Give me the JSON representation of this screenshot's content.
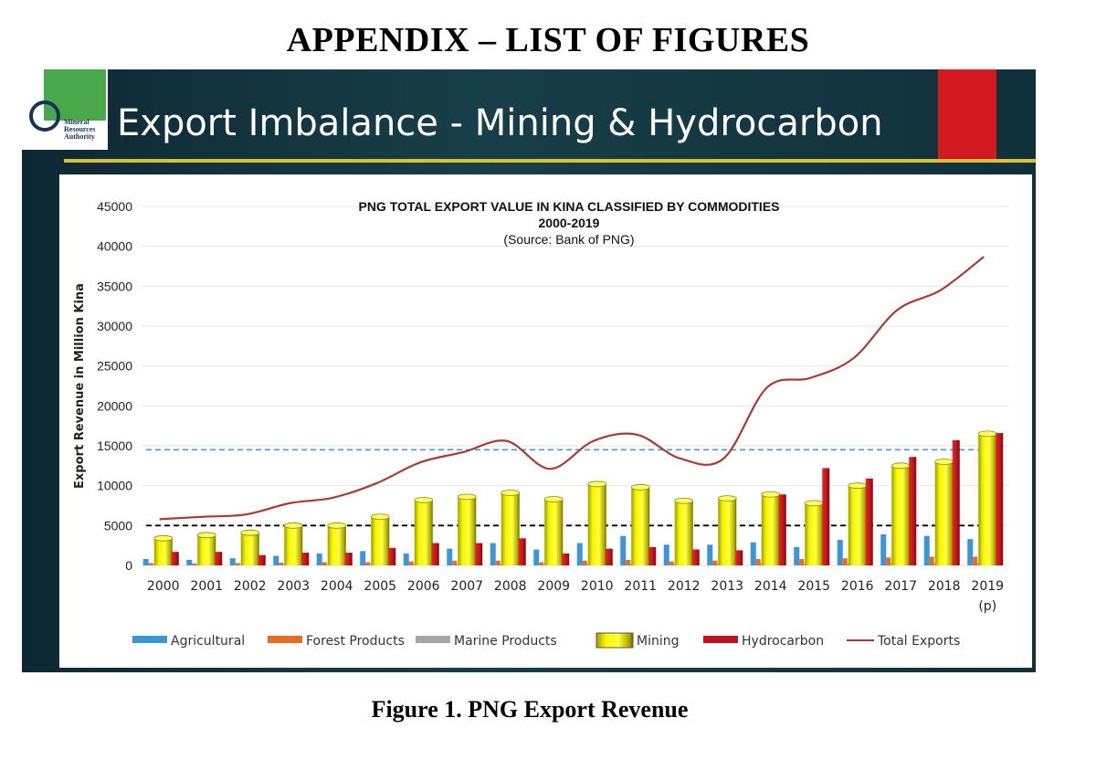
{
  "page": {
    "heading": "APPENDIX – LIST OF FIGURES",
    "caption": "Figure 1. PNG Export Revenue"
  },
  "slide": {
    "title": "Export Imbalance - Mining & Hydrocarbon",
    "logo_text": [
      "Mineral",
      "Resources",
      "Authority"
    ],
    "colors": {
      "background": "#173f49",
      "accent_red": "#d2191f",
      "rule": "#d8c13a",
      "logo_green": "#4aa84b"
    }
  },
  "chart_data": {
    "type": "bar",
    "title": [
      "PNG TOTAL EXPORT VALUE IN KINA CLASSIFIED BY COMMODITIES",
      "2000-2019",
      "(Source: Bank of PNG)"
    ],
    "xlabel": "",
    "ylabel": "Export Revenue in  Million Kina",
    "ylim": [
      0,
      45000
    ],
    "yticks": [
      0,
      5000,
      10000,
      15000,
      20000,
      25000,
      30000,
      35000,
      40000,
      45000
    ],
    "grid": "horizontal",
    "legend_position": "bottom",
    "categories": [
      "2000",
      "2001",
      "2002",
      "2003",
      "2004",
      "2005",
      "2006",
      "2007",
      "2008",
      "2009",
      "2010",
      "2011",
      "2012",
      "2013",
      "2014",
      "2015",
      "2016",
      "2017",
      "2018",
      "2019"
    ],
    "category_sublabels": {
      "2019": "(p)"
    },
    "series": [
      {
        "name": "Agricultural",
        "kind": "bar",
        "color": "#3a96d8",
        "values": [
          800,
          700,
          900,
          1200,
          1500,
          1800,
          1500,
          2100,
          2800,
          2000,
          2800,
          3700,
          2600,
          2600,
          2900,
          2300,
          3200,
          3900,
          3700,
          3300
        ]
      },
      {
        "name": "Forest Products",
        "kind": "bar",
        "color": "#ea6d1f",
        "values": [
          300,
          250,
          300,
          350,
          400,
          400,
          500,
          600,
          600,
          400,
          600,
          700,
          500,
          600,
          800,
          800,
          900,
          1000,
          1100,
          1100
        ]
      },
      {
        "name": "Marine Products",
        "kind": "bar",
        "color": "#a6a6a6",
        "values": [
          100,
          100,
          100,
          150,
          150,
          150,
          150,
          150,
          200,
          150,
          200,
          200,
          200,
          200,
          250,
          250,
          250,
          300,
          300,
          300
        ]
      },
      {
        "name": "Mining",
        "kind": "cylinder",
        "color": "#f2f200",
        "values": [
          3400,
          3800,
          4100,
          5000,
          5000,
          6100,
          8200,
          8600,
          9100,
          8300,
          10200,
          9800,
          8100,
          8400,
          8900,
          7800,
          10000,
          12500,
          13000,
          16500
        ]
      },
      {
        "name": "Hydrocarbon",
        "kind": "bar",
        "color": "#c3121c",
        "values": [
          1700,
          1700,
          1300,
          1600,
          1600,
          2200,
          2800,
          2800,
          3400,
          1500,
          2100,
          2300,
          2000,
          1900,
          8900,
          12200,
          10900,
          13600,
          15700,
          16600
        ]
      },
      {
        "name": "Total Exports",
        "kind": "line",
        "color": "#a93a34",
        "values": [
          5800,
          6100,
          6400,
          7800,
          8500,
          10300,
          12900,
          14200,
          15600,
          12100,
          15600,
          16400,
          13400,
          13400,
          22300,
          23500,
          26000,
          32000,
          34500,
          38700
        ]
      }
    ],
    "reference_lines": [
      {
        "value": 14500,
        "color": "#5b9bd5",
        "style": "dashed"
      },
      {
        "value": 5000,
        "color": "#000000",
        "style": "dashed"
      }
    ]
  }
}
